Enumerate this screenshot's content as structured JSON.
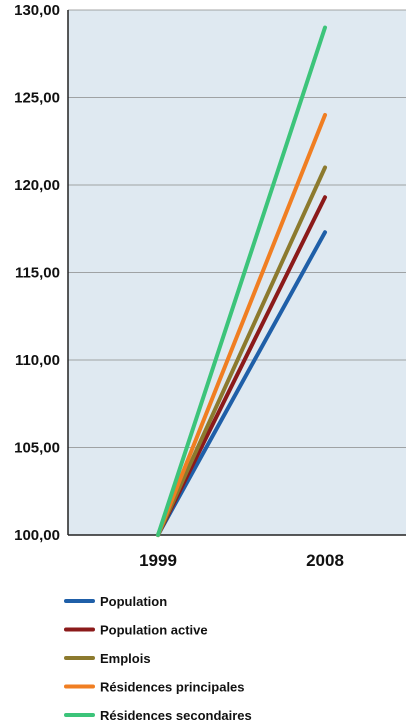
{
  "chart_data": {
    "type": "line",
    "categories": [
      "1999",
      "2008"
    ],
    "y_ticks": [
      "100,00",
      "105,00",
      "110,00",
      "115,00",
      "120,00",
      "125,00",
      "130,00"
    ],
    "ylim": [
      100,
      130
    ],
    "grid": true,
    "legend_position": "bottom",
    "series": [
      {
        "name": "Population",
        "color": "#1f5fa8",
        "values": [
          100,
          117.3
        ]
      },
      {
        "name": "Population active",
        "color": "#8b1a1a",
        "values": [
          100,
          119.3
        ]
      },
      {
        "name": "Emplois",
        "color": "#8c7a2e",
        "values": [
          100,
          121.0
        ]
      },
      {
        "name": "Résidences principales",
        "color": "#f07e22",
        "values": [
          100,
          124.0
        ]
      },
      {
        "name": "Résidences secondaires",
        "color": "#3cc47a",
        "values": [
          100,
          129.0
        ]
      }
    ]
  }
}
